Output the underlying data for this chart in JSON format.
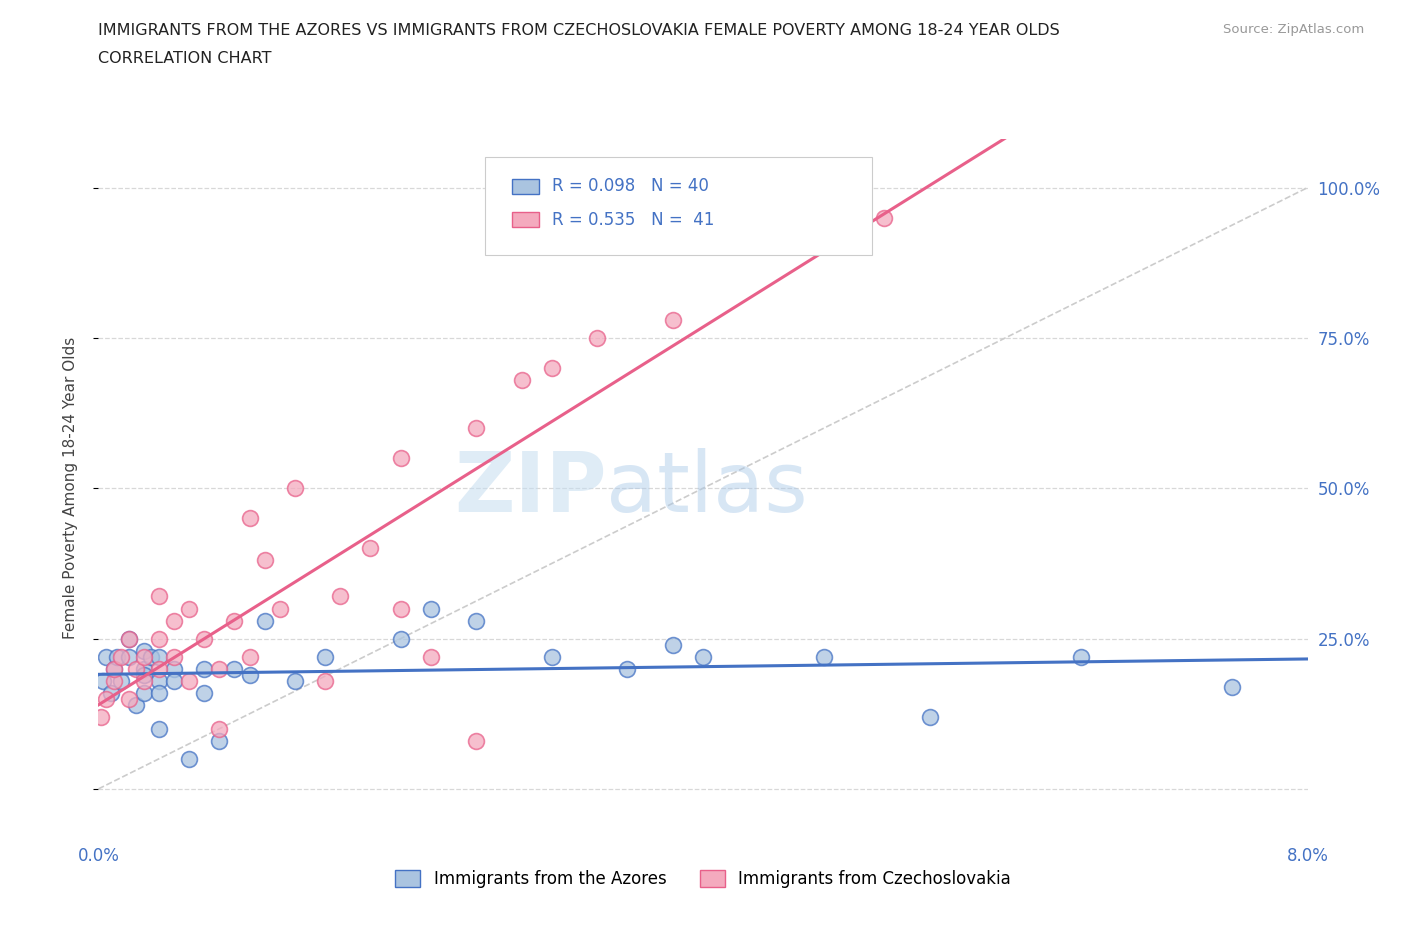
{
  "title_line1": "IMMIGRANTS FROM THE AZORES VS IMMIGRANTS FROM CZECHOSLOVAKIA FEMALE POVERTY AMONG 18-24 YEAR OLDS",
  "title_line2": "CORRELATION CHART",
  "source": "Source: ZipAtlas.com",
  "ylabel": "Female Poverty Among 18-24 Year Olds",
  "xlim": [
    0.0,
    0.08
  ],
  "ylim": [
    -0.08,
    1.08
  ],
  "ytick_positions": [
    0.0,
    0.25,
    0.5,
    0.75,
    1.0
  ],
  "right_ytick_labels": [
    "100.0%",
    "75.0%",
    "50.0%",
    "25.0%"
  ],
  "color_azores": "#aac4e0",
  "color_czech": "#f4aabe",
  "color_azores_line": "#4472c4",
  "color_czech_line": "#e8608a",
  "R_azores": 0.098,
  "N_azores": 40,
  "R_czech": 0.535,
  "N_czech": 41,
  "legend_label_azores": "Immigrants from the Azores",
  "legend_label_czech": "Immigrants from Czechoslovakia",
  "watermark_zip": "ZIP",
  "watermark_atlas": "atlas",
  "background_color": "#ffffff",
  "grid_color": "#d8d8d8",
  "azores_x": [
    0.0003,
    0.0005,
    0.0008,
    0.001,
    0.0012,
    0.0015,
    0.002,
    0.002,
    0.0025,
    0.003,
    0.003,
    0.003,
    0.003,
    0.0035,
    0.004,
    0.004,
    0.004,
    0.004,
    0.005,
    0.005,
    0.006,
    0.007,
    0.007,
    0.008,
    0.009,
    0.01,
    0.011,
    0.013,
    0.015,
    0.02,
    0.022,
    0.025,
    0.03,
    0.035,
    0.038,
    0.04,
    0.048,
    0.055,
    0.065,
    0.075
  ],
  "azores_y": [
    0.18,
    0.22,
    0.16,
    0.2,
    0.22,
    0.18,
    0.22,
    0.25,
    0.14,
    0.2,
    0.23,
    0.16,
    0.19,
    0.22,
    0.1,
    0.18,
    0.22,
    0.16,
    0.2,
    0.18,
    0.05,
    0.2,
    0.16,
    0.08,
    0.2,
    0.19,
    0.28,
    0.18,
    0.22,
    0.25,
    0.3,
    0.28,
    0.22,
    0.2,
    0.24,
    0.22,
    0.22,
    0.12,
    0.22,
    0.17
  ],
  "czech_x": [
    0.0002,
    0.0005,
    0.001,
    0.001,
    0.0015,
    0.002,
    0.002,
    0.0025,
    0.003,
    0.003,
    0.004,
    0.004,
    0.004,
    0.005,
    0.005,
    0.006,
    0.006,
    0.007,
    0.008,
    0.008,
    0.009,
    0.01,
    0.01,
    0.011,
    0.012,
    0.013,
    0.015,
    0.016,
    0.018,
    0.02,
    0.02,
    0.022,
    0.025,
    0.025,
    0.028,
    0.03,
    0.033,
    0.038,
    0.043,
    0.048,
    0.052
  ],
  "czech_y": [
    0.12,
    0.15,
    0.18,
    0.2,
    0.22,
    0.15,
    0.25,
    0.2,
    0.22,
    0.18,
    0.25,
    0.2,
    0.32,
    0.22,
    0.28,
    0.18,
    0.3,
    0.25,
    0.1,
    0.2,
    0.28,
    0.45,
    0.22,
    0.38,
    0.3,
    0.5,
    0.18,
    0.32,
    0.4,
    0.55,
    0.3,
    0.22,
    0.6,
    0.08,
    0.68,
    0.7,
    0.75,
    0.78,
    0.95,
    0.95,
    0.95
  ]
}
